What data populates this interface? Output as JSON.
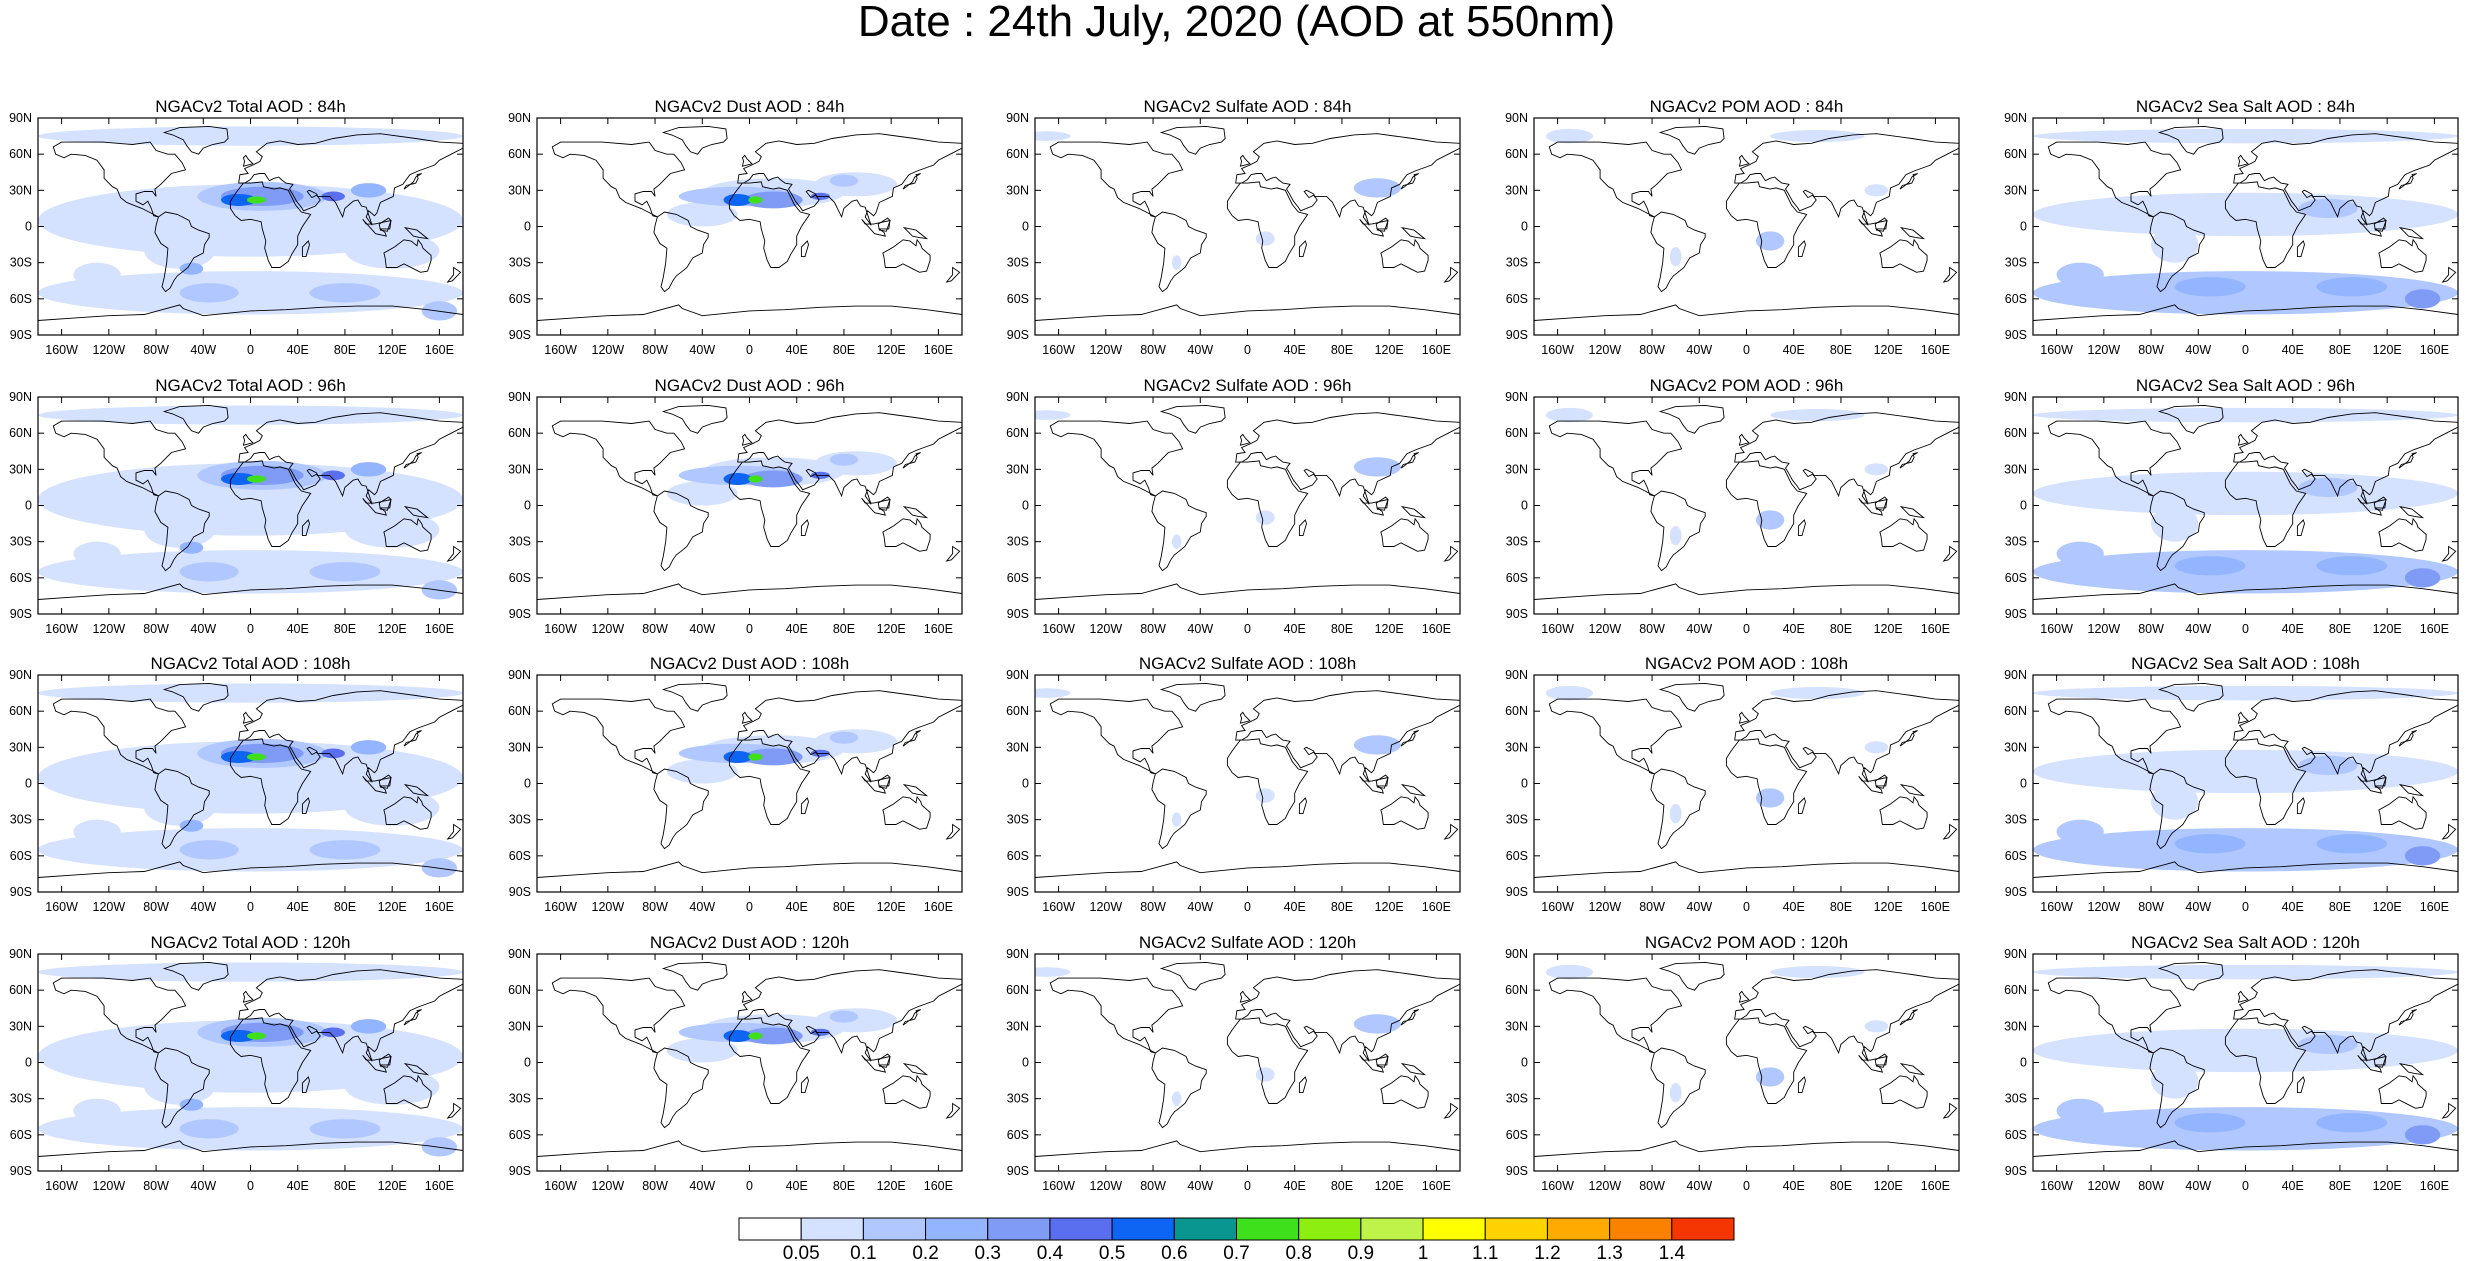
{
  "title": "Date : 24th July, 2020 (AOD at 550nm)",
  "species": [
    {
      "key": "total",
      "label": "Total AOD"
    },
    {
      "key": "dust",
      "label": "Dust AOD"
    },
    {
      "key": "sulfate",
      "label": "Sulfate AOD"
    },
    {
      "key": "pom",
      "label": "POM AOD"
    },
    {
      "key": "seasalt",
      "label": "Sea Salt AOD"
    }
  ],
  "forecast_hours": [
    "84h",
    "96h",
    "108h",
    "120h"
  ],
  "panels": [
    [
      "NGACv2 Total AOD : 84h",
      "NGACv2 Dust AOD : 84h",
      "NGACv2 Sulfate AOD : 84h",
      "NGACv2 POM AOD : 84h",
      "NGACv2 Sea Salt AOD : 84h"
    ],
    [
      "NGACv2 Total AOD : 96h",
      "NGACv2 Dust AOD : 96h",
      "NGACv2 Sulfate AOD : 96h",
      "NGACv2 POM AOD : 96h",
      "NGACv2 Sea Salt AOD : 96h"
    ],
    [
      "NGACv2 Total AOD : 108h",
      "NGACv2 Dust AOD : 108h",
      "NGACv2 Sulfate AOD : 108h",
      "NGACv2 POM AOD : 108h",
      "NGACv2 Sea Salt AOD : 108h"
    ],
    [
      "NGACv2 Total AOD : 120h",
      "NGACv2 Dust AOD : 120h",
      "NGACv2 Sulfate AOD : 120h",
      "NGACv2 POM AOD : 120h",
      "NGACv2 Sea Salt  AOD : 120h"
    ]
  ],
  "lat_ticks": [
    "90N",
    "60N",
    "30N",
    "0",
    "30S",
    "60S",
    "90S"
  ],
  "lon_ticks": [
    "160W",
    "120W",
    "80W",
    "40W",
    "0",
    "40E",
    "80E",
    "120E",
    "160E"
  ],
  "lat_values": [
    90,
    60,
    30,
    0,
    -30,
    -60,
    -90
  ],
  "lon_values": [
    -160,
    -120,
    -80,
    -40,
    0,
    40,
    80,
    120,
    160
  ],
  "colorbar": {
    "labels": [
      "0.05",
      "0.1",
      "0.2",
      "0.3",
      "0.4",
      "0.5",
      "0.6",
      "0.7",
      "0.8",
      "0.9",
      "1",
      "1.1",
      "1.2",
      "1.3",
      "1.4"
    ],
    "colors": [
      "#ffffff",
      "#d4e1ff",
      "#b0c8ff",
      "#93b4ff",
      "#7f9bf6",
      "#5a6ef0",
      "#0e64f3",
      "#0a9690",
      "#3de01a",
      "#8cef0f",
      "#bff34a",
      "#ffff00",
      "#ffd200",
      "#ffaa00",
      "#fa8200",
      "#f63600"
    ]
  }
}
